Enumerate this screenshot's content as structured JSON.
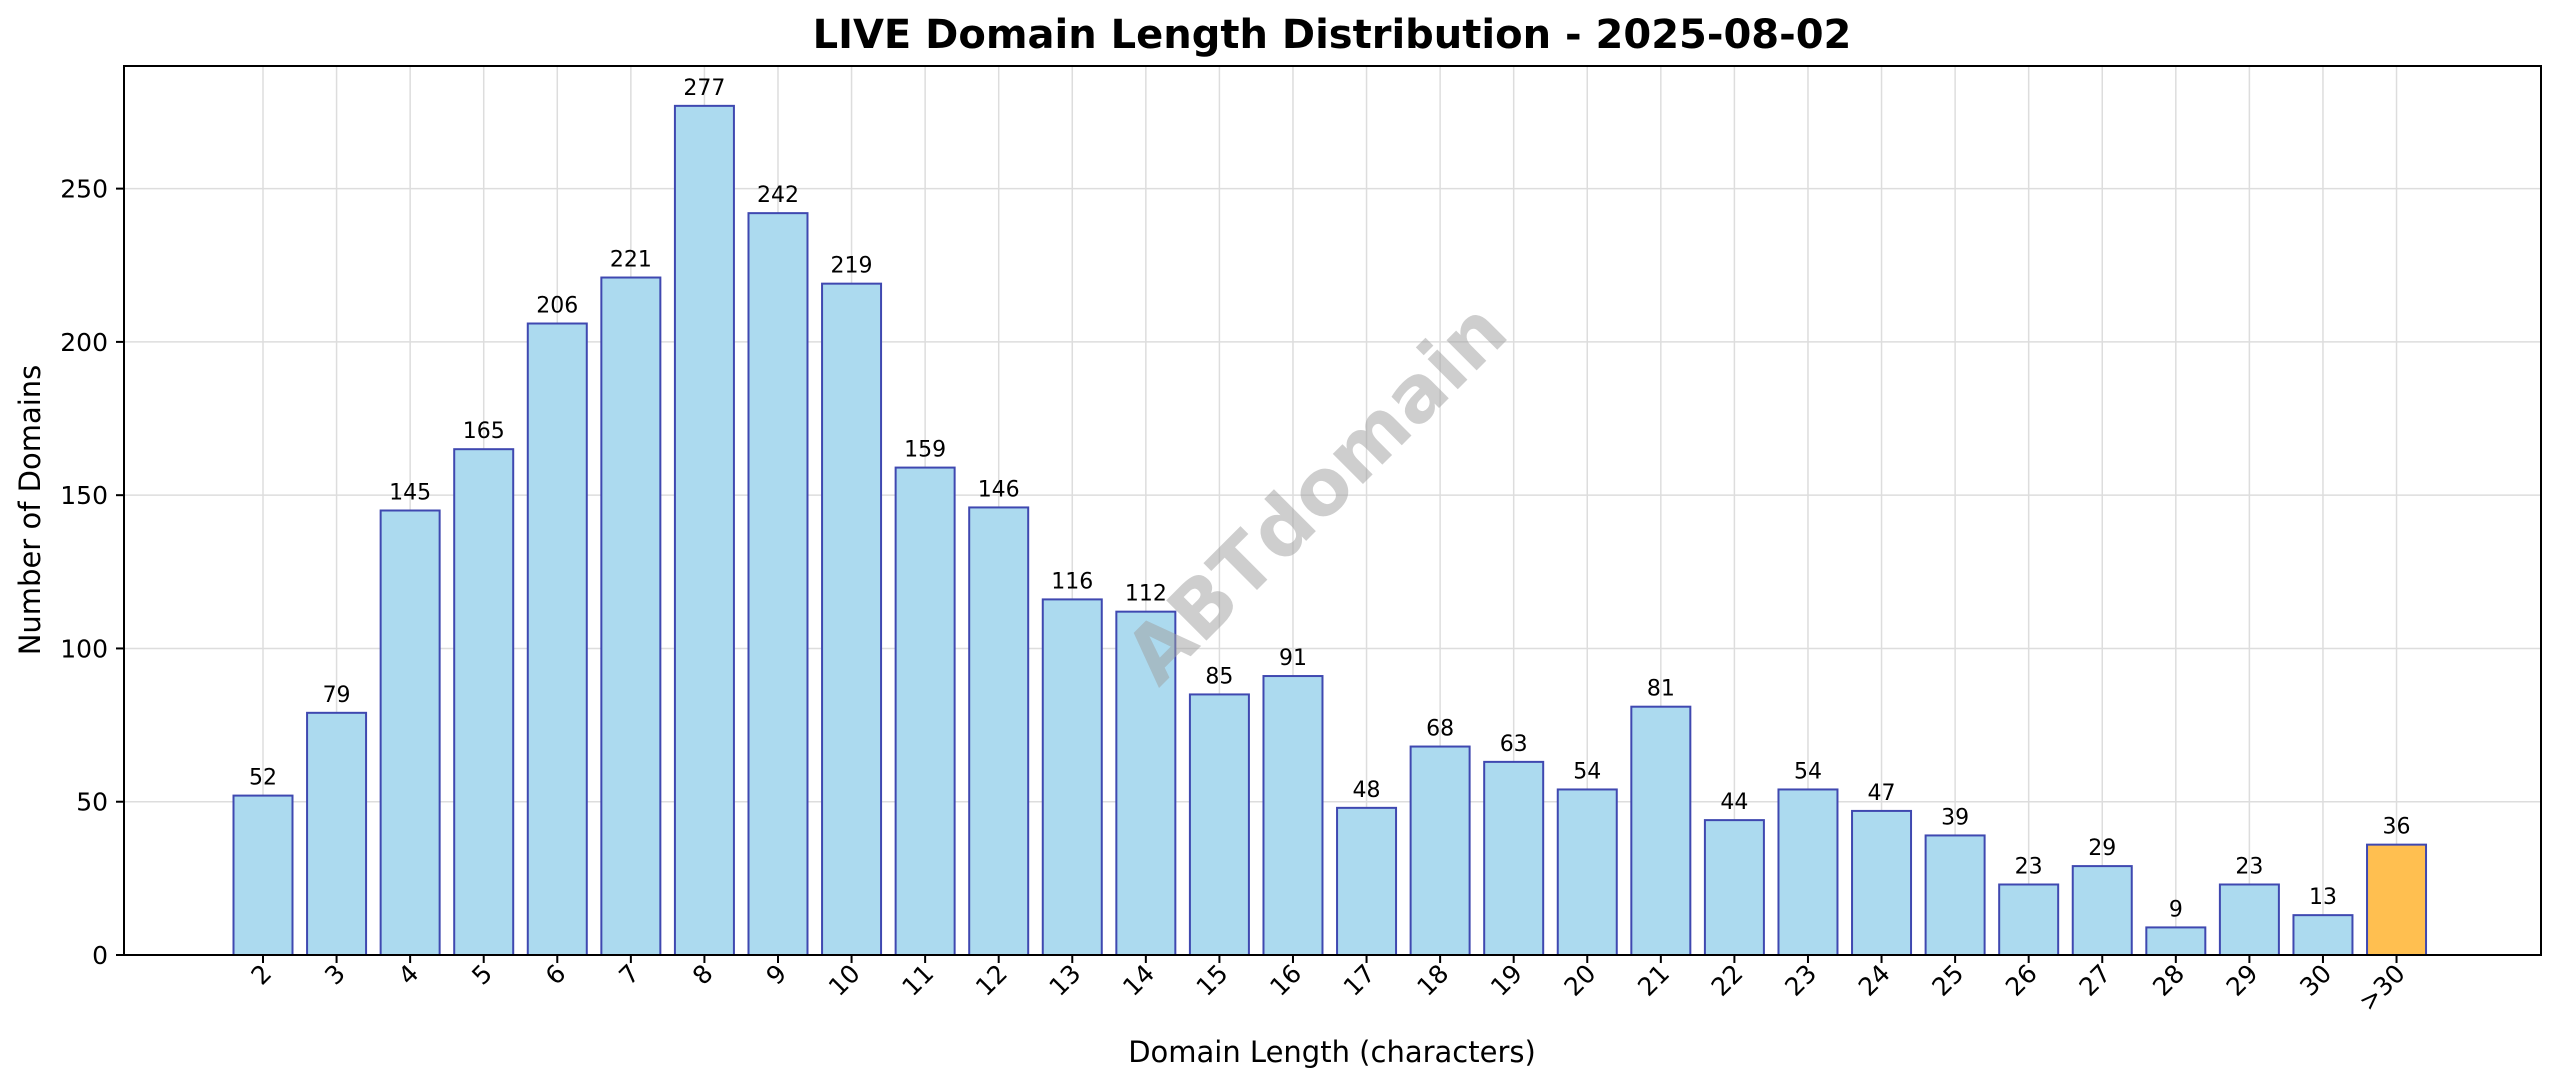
{
  "chart_data": {
    "type": "bar",
    "title": "LIVE Domain Length Distribution - 2025-08-02",
    "xlabel": "Domain Length (characters)",
    "ylabel": "Number of Domains",
    "categories": [
      "2",
      "3",
      "4",
      "5",
      "6",
      "7",
      "8",
      "9",
      "10",
      "11",
      "12",
      "13",
      "14",
      "15",
      "16",
      "17",
      "18",
      "19",
      "20",
      "21",
      "22",
      "23",
      "24",
      "25",
      "26",
      "27",
      "28",
      "29",
      "30",
      ">30"
    ],
    "values": [
      52,
      79,
      145,
      165,
      206,
      221,
      277,
      242,
      219,
      159,
      146,
      116,
      112,
      85,
      91,
      48,
      68,
      63,
      54,
      81,
      44,
      54,
      47,
      39,
      23,
      29,
      9,
      23,
      13,
      36
    ],
    "ylim": [
      0,
      290
    ],
    "yticks": [
      0,
      50,
      100,
      150,
      200,
      250
    ],
    "grid": true,
    "legend": "none",
    "colors": {
      "bar_fill": "#acdaef",
      "bar_edge": "#3f48b0",
      "highlight_fill": "#ffbf50",
      "highlight_edge": "#3f48b0"
    },
    "highlight_category": ">30",
    "watermark": "ABTdomain"
  }
}
